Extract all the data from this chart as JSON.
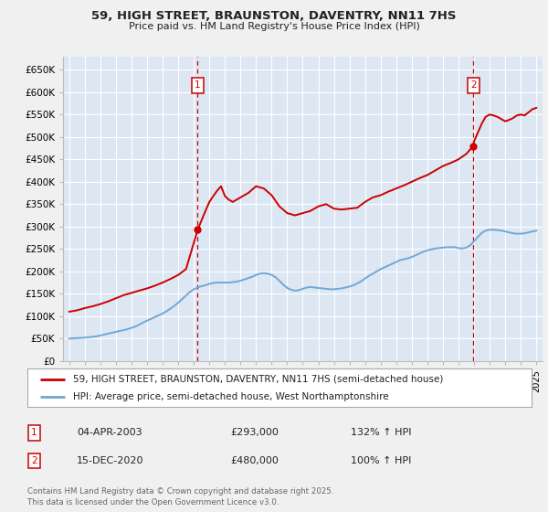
{
  "title": "59, HIGH STREET, BRAUNSTON, DAVENTRY, NN11 7HS",
  "subtitle": "Price paid vs. HM Land Registry's House Price Index (HPI)",
  "bg_color": "#f0f0f0",
  "plot_bg_color": "#dce7f3",
  "ylabel": "",
  "xlabel": "",
  "ylim": [
    0,
    680000
  ],
  "yticks": [
    0,
    50000,
    100000,
    150000,
    200000,
    250000,
    300000,
    350000,
    400000,
    450000,
    500000,
    550000,
    600000,
    650000
  ],
  "ytick_labels": [
    "£0",
    "£50K",
    "£100K",
    "£150K",
    "£200K",
    "£250K",
    "£300K",
    "£350K",
    "£400K",
    "£450K",
    "£500K",
    "£550K",
    "£600K",
    "£650K"
  ],
  "legend_line1": "59, HIGH STREET, BRAUNSTON, DAVENTRY, NN11 7HS (semi-detached house)",
  "legend_line2": "HPI: Average price, semi-detached house, West Northamptonshire",
  "footer": "Contains HM Land Registry data © Crown copyright and database right 2025.\nThis data is licensed under the Open Government Licence v3.0.",
  "marker1_date": "04-APR-2003",
  "marker1_price": "£293,000",
  "marker1_hpi": "132% ↑ HPI",
  "marker2_date": "15-DEC-2020",
  "marker2_price": "£480,000",
  "marker2_hpi": "100% ↑ HPI",
  "price_line_color": "#cc0000",
  "hpi_line_color": "#6fa8d4",
  "marker_vline_color": "#cc0000",
  "marker_dot_color": "#cc0000",
  "grid_color": "#ffffff",
  "hpi_data_x": [
    1995.0,
    1995.25,
    1995.5,
    1995.75,
    1996.0,
    1996.25,
    1996.5,
    1996.75,
    1997.0,
    1997.25,
    1997.5,
    1997.75,
    1998.0,
    1998.25,
    1998.5,
    1998.75,
    1999.0,
    1999.25,
    1999.5,
    1999.75,
    2000.0,
    2000.25,
    2000.5,
    2000.75,
    2001.0,
    2001.25,
    2001.5,
    2001.75,
    2002.0,
    2002.25,
    2002.5,
    2002.75,
    2003.0,
    2003.25,
    2003.5,
    2003.75,
    2004.0,
    2004.25,
    2004.5,
    2004.75,
    2005.0,
    2005.25,
    2005.5,
    2005.75,
    2006.0,
    2006.25,
    2006.5,
    2006.75,
    2007.0,
    2007.25,
    2007.5,
    2007.75,
    2008.0,
    2008.25,
    2008.5,
    2008.75,
    2009.0,
    2009.25,
    2009.5,
    2009.75,
    2010.0,
    2010.25,
    2010.5,
    2010.75,
    2011.0,
    2011.25,
    2011.5,
    2011.75,
    2012.0,
    2012.25,
    2012.5,
    2012.75,
    2013.0,
    2013.25,
    2013.5,
    2013.75,
    2014.0,
    2014.25,
    2014.5,
    2014.75,
    2015.0,
    2015.25,
    2015.5,
    2015.75,
    2016.0,
    2016.25,
    2016.5,
    2016.75,
    2017.0,
    2017.25,
    2017.5,
    2017.75,
    2018.0,
    2018.25,
    2018.5,
    2018.75,
    2019.0,
    2019.25,
    2019.5,
    2019.75,
    2020.0,
    2020.25,
    2020.5,
    2020.75,
    2021.0,
    2021.25,
    2021.5,
    2021.75,
    2022.0,
    2022.25,
    2022.5,
    2022.75,
    2023.0,
    2023.25,
    2023.5,
    2023.75,
    2024.0,
    2024.25,
    2024.5,
    2024.75,
    2025.0
  ],
  "hpi_data_y": [
    50000,
    50500,
    51000,
    51500,
    52000,
    53000,
    54000,
    55000,
    57000,
    59000,
    61000,
    63000,
    65000,
    67000,
    69000,
    71000,
    74000,
    77000,
    81000,
    86000,
    90000,
    94000,
    98000,
    102000,
    106000,
    111000,
    117000,
    123000,
    130000,
    138000,
    146000,
    154000,
    160000,
    164000,
    167000,
    169000,
    172000,
    174000,
    175000,
    175000,
    175000,
    175000,
    176000,
    177000,
    179000,
    182000,
    185000,
    188000,
    192000,
    195000,
    196000,
    195000,
    192000,
    187000,
    179000,
    170000,
    163000,
    159000,
    157000,
    158000,
    161000,
    164000,
    165000,
    164000,
    163000,
    162000,
    161000,
    160000,
    160000,
    161000,
    162000,
    164000,
    166000,
    169000,
    173000,
    178000,
    184000,
    190000,
    195000,
    200000,
    205000,
    209000,
    213000,
    217000,
    221000,
    225000,
    227000,
    229000,
    232000,
    236000,
    240000,
    244000,
    247000,
    249000,
    251000,
    252000,
    253000,
    254000,
    254000,
    254000,
    252000,
    251000,
    253000,
    258000,
    267000,
    277000,
    286000,
    291000,
    293000,
    293000,
    292000,
    291000,
    289000,
    287000,
    285000,
    284000,
    284000,
    285000,
    287000,
    289000,
    291000
  ],
  "price_data_x": [
    1995.0,
    1995.5,
    1996.0,
    1996.5,
    1997.0,
    1997.5,
    1998.0,
    1998.5,
    1999.0,
    1999.5,
    2000.0,
    2000.5,
    2001.0,
    2001.5,
    2002.0,
    2002.5,
    2003.25,
    2003.75,
    2004.0,
    2004.25,
    2004.5,
    2004.75,
    2005.0,
    2005.25,
    2005.5,
    2005.75,
    2006.0,
    2006.5,
    2007.0,
    2007.5,
    2008.0,
    2008.5,
    2009.0,
    2009.5,
    2010.0,
    2010.5,
    2011.0,
    2011.5,
    2012.0,
    2012.5,
    2013.0,
    2013.5,
    2014.0,
    2014.5,
    2015.0,
    2015.5,
    2016.0,
    2016.5,
    2017.0,
    2017.5,
    2018.0,
    2018.5,
    2019.0,
    2019.5,
    2020.0,
    2020.5,
    2020.95,
    2021.0,
    2021.25,
    2021.5,
    2021.75,
    2022.0,
    2022.25,
    2022.5,
    2022.75,
    2023.0,
    2023.25,
    2023.5,
    2023.75,
    2024.0,
    2024.25,
    2024.5,
    2024.75,
    2025.0
  ],
  "price_data_y": [
    110000,
    113000,
    118000,
    122000,
    127000,
    133000,
    140000,
    147000,
    152000,
    157000,
    162000,
    168000,
    175000,
    183000,
    192000,
    205000,
    293000,
    335000,
    355000,
    368000,
    380000,
    390000,
    368000,
    360000,
    355000,
    360000,
    365000,
    375000,
    390000,
    385000,
    370000,
    345000,
    330000,
    325000,
    330000,
    335000,
    345000,
    350000,
    340000,
    338000,
    340000,
    342000,
    355000,
    365000,
    370000,
    378000,
    385000,
    392000,
    400000,
    408000,
    415000,
    425000,
    435000,
    442000,
    450000,
    462000,
    480000,
    490000,
    510000,
    530000,
    545000,
    550000,
    548000,
    545000,
    540000,
    535000,
    538000,
    542000,
    548000,
    550000,
    548000,
    555000,
    562000,
    565000
  ],
  "marker1_x": 2003.25,
  "marker1_y": 293000,
  "marker2_x": 2020.95,
  "marker2_y": 480000,
  "xmin": 1994.6,
  "xmax": 2025.4
}
